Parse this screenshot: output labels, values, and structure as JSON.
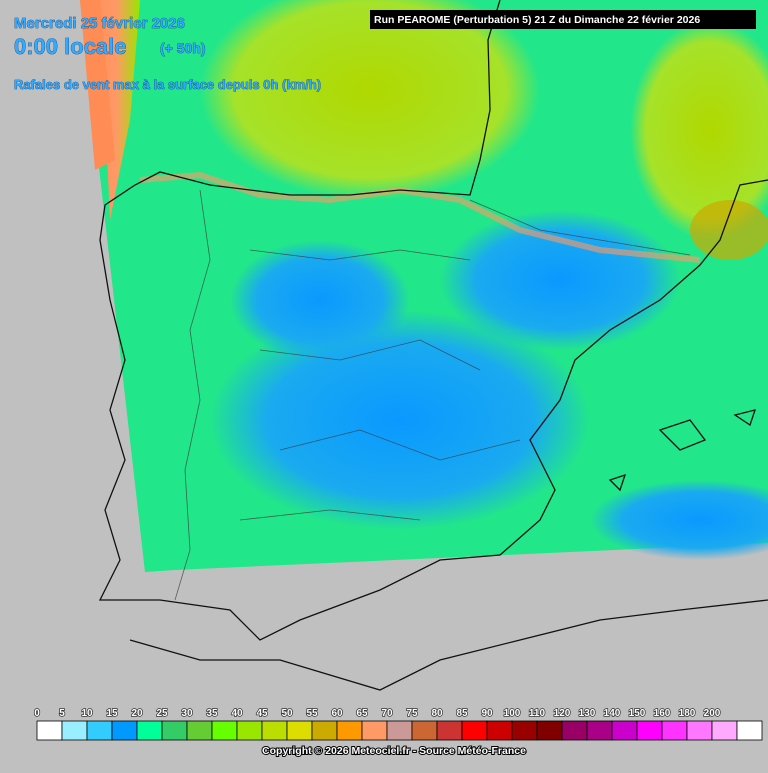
{
  "header": {
    "date": "Mercredi 25 février 2026",
    "time": "0:00 locale",
    "lead": "(+ 50h)",
    "parameter": "Rafales de vent max à la surface depuis 0h (km/h)",
    "run": "Run PEAROME (Perturbation 5) 21 Z du Dimanche 22 février 2026"
  },
  "legend": {
    "labels": [
      "0",
      "5",
      "10",
      "15",
      "20",
      "25",
      "30",
      "35",
      "40",
      "45",
      "50",
      "55",
      "60",
      "65",
      "70",
      "75",
      "80",
      "85",
      "90",
      "100",
      "110",
      "120",
      "130",
      "140",
      "150",
      "160",
      "180",
      "200"
    ],
    "colors": [
      "#ffffff",
      "#99eeff",
      "#33ccff",
      "#0099ff",
      "#00ff99",
      "#33cc66",
      "#66cc33",
      "#66ff00",
      "#99e600",
      "#bbdd00",
      "#dddd00",
      "#ccaa00",
      "#ff9900",
      "#ff9966",
      "#cc9999",
      "#cc6633",
      "#cc3333",
      "#ff0000",
      "#cc0000",
      "#990000",
      "#800000",
      "#990066",
      "#aa0088",
      "#cc00cc",
      "#ff00ff",
      "#ff33ff",
      "#ff77ff",
      "#ffaaff",
      "#ffffff"
    ]
  },
  "footer": {
    "copyright": "Copyright © 2026 Meteociel.fr - Source Météo-France"
  }
}
